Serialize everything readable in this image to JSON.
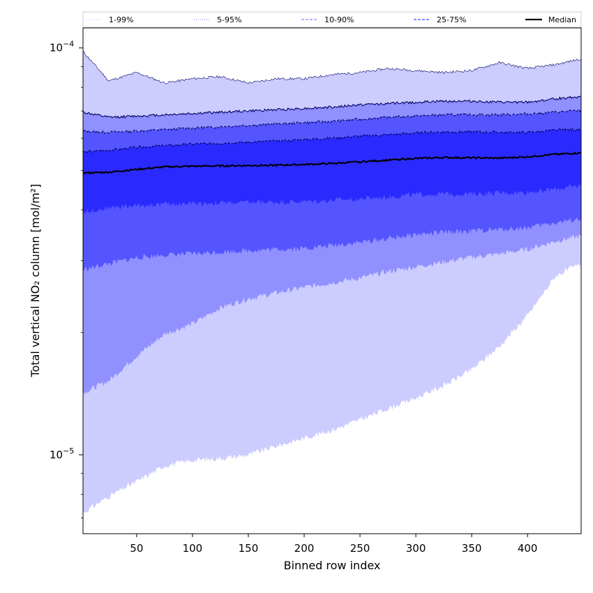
{
  "chart_data": {
    "type": "area",
    "xlabel": "Binned row index",
    "ylabel": "Total vertical NO₂ column [mol/m²]",
    "y_scale": "log",
    "xlim": [
      2,
      448
    ],
    "ylim": [
      6.4e-06,
      0.000112
    ],
    "grid": false,
    "legend_placement": "top",
    "x_ticks": [
      {
        "value": 50,
        "label": "50"
      },
      {
        "value": 100,
        "label": "100"
      },
      {
        "value": 150,
        "label": "150"
      },
      {
        "value": 200,
        "label": "200"
      },
      {
        "value": 250,
        "label": "250"
      },
      {
        "value": 300,
        "label": "300"
      },
      {
        "value": 350,
        "label": "350"
      },
      {
        "value": 400,
        "label": "400"
      }
    ],
    "y_ticks": [
      {
        "value": 1e-05,
        "base": "10",
        "exponent": "−5"
      },
      {
        "value": 0.0001,
        "base": "10",
        "exponent": "−4"
      }
    ],
    "x": [
      2,
      25,
      50,
      75,
      100,
      125,
      150,
      175,
      200,
      225,
      250,
      275,
      300,
      325,
      350,
      375,
      400,
      425,
      448
    ],
    "bands": [
      {
        "name": "1-99%",
        "color": "#ccccff",
        "lower": [
          7.2e-06,
          7.9e-06,
          8.6e-06,
          9.4e-06,
          9.7e-06,
          9.8e-06,
          1e-05,
          1.05e-05,
          1.1e-05,
          1.15e-05,
          1.22e-05,
          1.3e-05,
          1.38e-05,
          1.48e-05,
          1.62e-05,
          1.85e-05,
          2.2e-05,
          2.75e-05,
          2.95e-05
        ],
        "upper": [
          9.8e-05,
          8.3e-05,
          8.7e-05,
          8.2e-05,
          8.4e-05,
          8.5e-05,
          8.2e-05,
          8.4e-05,
          8.4e-05,
          8.6e-05,
          8.7e-05,
          8.9e-05,
          8.8e-05,
          8.7e-05,
          8.8e-05,
          9.2e-05,
          8.9e-05,
          9.1e-05,
          9.4e-05
        ]
      },
      {
        "name": "5-95%",
        "color": "#9090ff",
        "lower": [
          1.42e-05,
          1.52e-05,
          1.75e-05,
          1.98e-05,
          2.1e-05,
          2.3e-05,
          2.42e-05,
          2.5e-05,
          2.58e-05,
          2.65e-05,
          2.72e-05,
          2.82e-05,
          2.9e-05,
          2.98e-05,
          3.06e-05,
          3.12e-05,
          3.2e-05,
          3.35e-05,
          3.45e-05
        ],
        "upper": [
          6.95e-05,
          6.75e-05,
          6.8e-05,
          6.85e-05,
          6.9e-05,
          6.95e-05,
          7e-05,
          7.05e-05,
          7.1e-05,
          7.15e-05,
          7.25e-05,
          7.3e-05,
          7.35e-05,
          7.4e-05,
          7.4e-05,
          7.35e-05,
          7.35e-05,
          7.5e-05,
          7.6e-05
        ]
      },
      {
        "name": "10-90%",
        "color": "#5555ff",
        "lower": [
          2.85e-05,
          2.95e-05,
          3.05e-05,
          3.1e-05,
          3.12e-05,
          3.15e-05,
          3.18e-05,
          3.2e-05,
          3.22e-05,
          3.27e-05,
          3.33e-05,
          3.4e-05,
          3.48e-05,
          3.52e-05,
          3.55e-05,
          3.58e-05,
          3.62e-05,
          3.72e-05,
          3.8e-05
        ],
        "upper": [
          6.25e-05,
          6.2e-05,
          6.25e-05,
          6.3e-05,
          6.35e-05,
          6.4e-05,
          6.45e-05,
          6.5e-05,
          6.55e-05,
          6.6e-05,
          6.68e-05,
          6.75e-05,
          6.8e-05,
          6.85e-05,
          6.85e-05,
          6.85e-05,
          6.88e-05,
          6.95e-05,
          7.02e-05
        ]
      },
      {
        "name": "25-75%",
        "color": "#2a2aff",
        "lower": [
          3.95e-05,
          4.05e-05,
          4.1e-05,
          4.13e-05,
          4.15e-05,
          4.16e-05,
          4.17e-05,
          4.18e-05,
          4.19e-05,
          4.22e-05,
          4.26e-05,
          4.3e-05,
          4.36e-05,
          4.38e-05,
          4.38e-05,
          4.4e-05,
          4.42e-05,
          4.5e-05,
          4.58e-05
        ],
        "upper": [
          5.55e-05,
          5.6e-05,
          5.7e-05,
          5.75e-05,
          5.8e-05,
          5.83e-05,
          5.87e-05,
          5.9e-05,
          5.95e-05,
          6e-05,
          6.07e-05,
          6.12e-05,
          6.18e-05,
          6.22e-05,
          6.22e-05,
          6.2e-05,
          6.2e-05,
          6.28e-05,
          6.3e-05
        ]
      }
    ],
    "median": {
      "name": "Median",
      "color": "#000000",
      "values": [
        4.93e-05,
        4.95e-05,
        5.03e-05,
        5.1e-05,
        5.12e-05,
        5.13e-05,
        5.14e-05,
        5.15e-05,
        5.17e-05,
        5.2e-05,
        5.25e-05,
        5.3e-05,
        5.35e-05,
        5.38e-05,
        5.37e-05,
        5.36e-05,
        5.4e-05,
        5.48e-05,
        5.52e-05
      ]
    },
    "legend": [
      {
        "label": "1-99%",
        "style": "dotted",
        "color": "#ccccff"
      },
      {
        "label": "5-95%",
        "style": "dotted",
        "color": "#9090ff"
      },
      {
        "label": "10-90%",
        "style": "dashed",
        "color": "#8080ff"
      },
      {
        "label": "25-75%",
        "style": "dashed",
        "color": "#4040ff"
      },
      {
        "label": "Median",
        "style": "solid",
        "color": "#000000"
      }
    ]
  }
}
